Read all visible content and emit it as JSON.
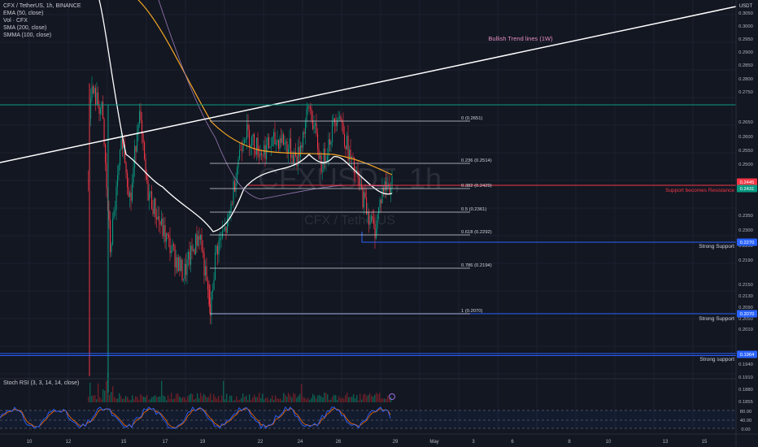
{
  "legend": {
    "symbol": "CFX / TetherUS, 1h, BINANCE",
    "ema": "EMA (50, close)",
    "vol": "Vol · CFX",
    "sma": "SMA (200, close)",
    "smma": "SMMA (100, close)"
  },
  "axis": {
    "currency": "USDT",
    "prices": [
      "0.3050",
      "0.3000",
      "0.2950",
      "0.2900",
      "0.2850",
      "0.2800",
      "0.2750",
      "0.2650",
      "0.2600",
      "0.2550",
      "0.2500",
      "0.2350",
      "0.2300",
      "0.2250",
      "0.2190",
      "0.2150",
      "0.2130",
      "0.2090",
      "0.2050",
      "0.2010",
      "0.1940",
      "0.1910",
      "0.1880",
      "0.1855"
    ],
    "badges": [
      {
        "value": "0.2445",
        "color": "#f23645"
      },
      {
        "value": "0.2431",
        "color": "#089981"
      },
      {
        "value": "0.2270",
        "color": "#2962ff"
      },
      {
        "value": "0.2070",
        "color": "#2962ff"
      },
      {
        "value": "0.1964",
        "color": "#2962ff"
      }
    ],
    "dates": [
      "10",
      "12",
      "15",
      "17",
      "19",
      "22",
      "24",
      "26",
      "29",
      "May",
      "3",
      "6",
      "8",
      "10",
      "13",
      "15"
    ]
  },
  "fib": [
    {
      "label": "0 (0.2651)"
    },
    {
      "label": "0.236 (0.2514)"
    },
    {
      "label": "0.382 (0.2429)"
    },
    {
      "label": "0.5 (0.2361)"
    },
    {
      "label": "0.618 (0.2292)"
    },
    {
      "label": "0.786 (0.2194)"
    },
    {
      "label": "1 (0.2070)"
    }
  ],
  "annotations": {
    "trend": "Bullish Trend lines (1W)",
    "resistance": "Support becomes Resistance",
    "support1": "Strong Support",
    "support2": "Strong Support",
    "support3": "Strong support"
  },
  "watermark": {
    "big": "CFXUSDT, 1h",
    "small": "CFX / TetherUS"
  },
  "rsi": {
    "label": "Stoch RSI (3, 3, 14, 14, close)",
    "levels": [
      "80.00",
      "40.00",
      "0.00"
    ]
  },
  "colors": {
    "background": "#131722",
    "bull": "#089981",
    "bear": "#f23645",
    "support": "#2962ff",
    "resistance": "#f23645",
    "trend_line": "#ffffff",
    "trend_text": "#e38ec2",
    "ema": "#ffffff",
    "sma": "#f5a623",
    "smma": "#9a7bb5",
    "rsi_k": "#2962ff",
    "rsi_d": "#ff6d00"
  }
}
